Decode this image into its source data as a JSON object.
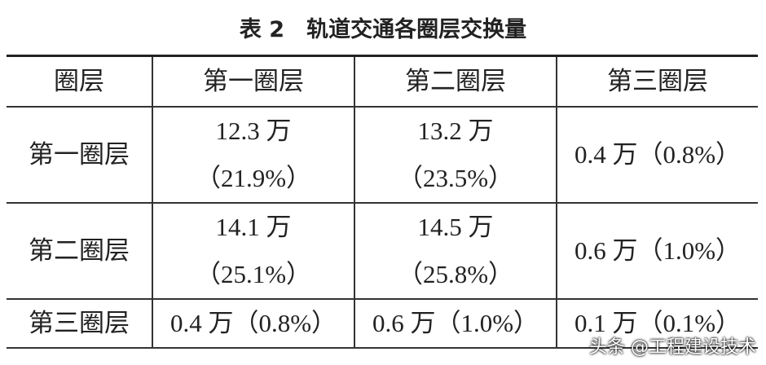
{
  "title": "表 2　轨道交通各圈层交换量",
  "table": {
    "header": [
      "圈层",
      "第一圈层",
      "第二圈层",
      "第三圈层"
    ],
    "rows": [
      [
        "第一圈层",
        [
          "12.3 万",
          "（21.9%）"
        ],
        [
          "13.2 万",
          "（23.5%）"
        ],
        "0.4 万（0.8%）"
      ],
      [
        "第二圈层",
        [
          "14.1 万",
          "（25.1%）"
        ],
        [
          "14.5 万",
          "（25.8%）"
        ],
        "0.6 万（1.0%）"
      ],
      [
        "第三圈层",
        "0.4 万（0.8%）",
        "0.6 万（1.0%）",
        "0.1 万（0.1%）"
      ]
    ]
  },
  "watermark": "头条 @工程建设技术"
}
